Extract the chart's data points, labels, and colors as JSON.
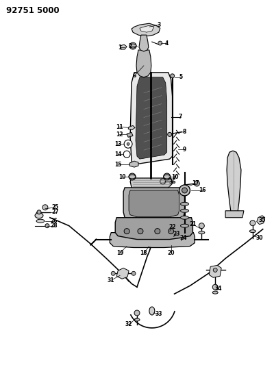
{
  "title": "92751 5000",
  "bg": "#ffffff",
  "lc": "#000000",
  "fig_w": 4.0,
  "fig_h": 5.33,
  "dpi": 100
}
